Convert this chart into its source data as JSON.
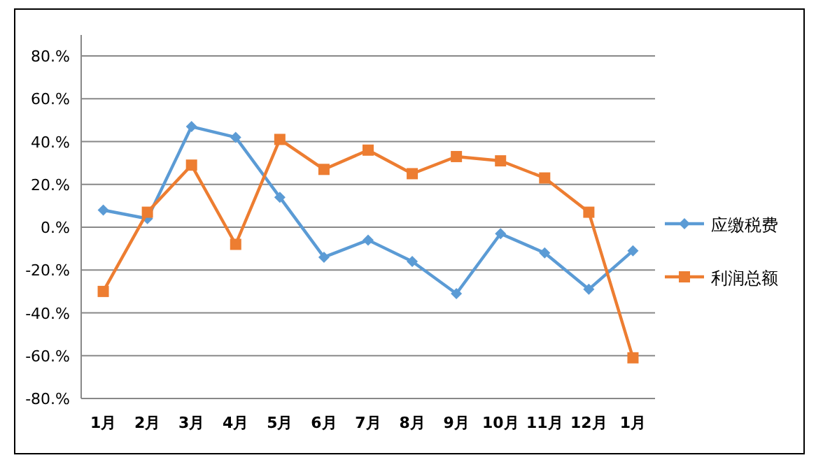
{
  "chart_data": {
    "type": "line",
    "categories": [
      "1月",
      "2月",
      "3月",
      "4月",
      "5月",
      "6月",
      "7月",
      "8月",
      "9月",
      "10月",
      "11月",
      "12月",
      "1月"
    ],
    "series": [
      {
        "name": "应缴税费",
        "color": "#5b9bd5",
        "marker": "diamond",
        "values": [
          8,
          4,
          47,
          42,
          14,
          -14,
          -6,
          -16,
          -31,
          -3,
          -12,
          -29,
          -11
        ]
      },
      {
        "name": "利润总额",
        "color": "#ed7d31",
        "marker": "square",
        "values": [
          -30,
          7,
          29,
          -8,
          41,
          27,
          36,
          25,
          33,
          31,
          23,
          7,
          -61
        ]
      }
    ],
    "ylim": [
      -80,
      80
    ],
    "yticks": [
      {
        "value": -80,
        "label": "-80.%"
      },
      {
        "value": -60,
        "label": "-60.%"
      },
      {
        "value": -40,
        "label": "-40.%"
      },
      {
        "value": -20,
        "label": "-20.%"
      },
      {
        "value": 0,
        "label": "0.%"
      },
      {
        "value": 20,
        "label": "20.%"
      },
      {
        "value": 40,
        "label": "40.%"
      },
      {
        "value": 60,
        "label": "60.%"
      },
      {
        "value": 80,
        "label": "80.%"
      }
    ],
    "grid": "y",
    "legend": "right",
    "line_style": "solid"
  }
}
